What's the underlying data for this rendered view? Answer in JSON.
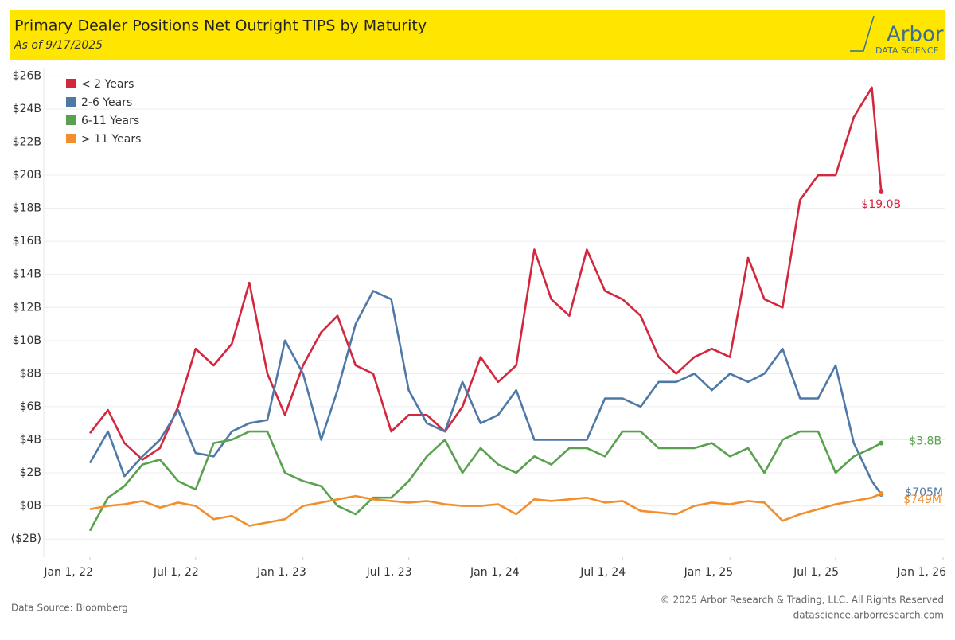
{
  "header": {
    "title": "Primary Dealer Positions Net Outright TIPS by Maturity",
    "subtitle": "As of 9/17/2025",
    "logo_name": "Arbor",
    "logo_tagline": "DATA SCIENCE"
  },
  "footer": {
    "source": "Data Source: Bloomberg",
    "copyright": "© 2025 Arbor Research & Trading, LLC. All Rights Reserved",
    "website": "datascience.arborresearch.com"
  },
  "chart_data": {
    "type": "line",
    "grid": true,
    "legend": "top-left",
    "x": [
      "2022-01-01",
      "2022-02-01",
      "2022-03-01",
      "2022-04-01",
      "2022-05-01",
      "2022-06-01",
      "2022-07-01",
      "2022-08-01",
      "2022-09-01",
      "2022-10-01",
      "2022-11-01",
      "2022-12-01",
      "2023-01-01",
      "2023-02-01",
      "2023-03-01",
      "2023-04-01",
      "2023-05-01",
      "2023-06-01",
      "2023-07-01",
      "2023-08-01",
      "2023-09-01",
      "2023-10-01",
      "2023-11-01",
      "2023-12-01",
      "2024-01-01",
      "2024-02-01",
      "2024-03-01",
      "2024-04-01",
      "2024-05-01",
      "2024-06-01",
      "2024-07-01",
      "2024-08-01",
      "2024-09-01",
      "2024-10-01",
      "2024-11-01",
      "2024-12-01",
      "2025-01-01",
      "2025-02-01",
      "2025-03-01",
      "2025-04-01",
      "2025-05-01",
      "2025-06-01",
      "2025-07-01",
      "2025-08-01",
      "2025-09-01",
      "2025-09-17"
    ],
    "xlim": [
      "2021-10-14",
      "2026-01-05"
    ],
    "xticks": [
      {
        "value": "2022-01-01",
        "label": "Jan 1, 22"
      },
      {
        "value": "2022-07-01",
        "label": "Jul 1, 22"
      },
      {
        "value": "2023-01-01",
        "label": "Jan 1, 23"
      },
      {
        "value": "2023-07-01",
        "label": "Jul 1, 23"
      },
      {
        "value": "2024-01-01",
        "label": "Jan 1, 24"
      },
      {
        "value": "2024-07-01",
        "label": "Jul 1, 24"
      },
      {
        "value": "2025-01-01",
        "label": "Jan 1, 25"
      },
      {
        "value": "2025-07-01",
        "label": "Jul 1, 25"
      },
      {
        "value": "2026-01-01",
        "label": "Jan 1, 26"
      }
    ],
    "ylim": [
      -3.1,
      26.5
    ],
    "yticks": [
      {
        "value": -2,
        "label": "($2B)"
      },
      {
        "value": 0,
        "label": "$0B"
      },
      {
        "value": 2,
        "label": "$2B"
      },
      {
        "value": 4,
        "label": "$4B"
      },
      {
        "value": 6,
        "label": "$6B"
      },
      {
        "value": 8,
        "label": "$8B"
      },
      {
        "value": 10,
        "label": "$10B"
      },
      {
        "value": 12,
        "label": "$12B"
      },
      {
        "value": 14,
        "label": "$14B"
      },
      {
        "value": 16,
        "label": "$16B"
      },
      {
        "value": 18,
        "label": "$18B"
      },
      {
        "value": 20,
        "label": "$20B"
      },
      {
        "value": 22,
        "label": "$22B"
      },
      {
        "value": 24,
        "label": "$24B"
      },
      {
        "value": 26,
        "label": "$26B"
      }
    ],
    "series": [
      {
        "name": "< 2 Years",
        "color": "#d3273e",
        "values": [
          4.4,
          5.8,
          3.8,
          2.8,
          3.5,
          6.0,
          9.5,
          8.5,
          9.8,
          13.5,
          8.0,
          5.5,
          8.5,
          10.5,
          11.5,
          8.5,
          8.0,
          4.5,
          5.5,
          5.5,
          4.5,
          6.0,
          9.0,
          7.5,
          8.5,
          15.5,
          12.5,
          11.5,
          15.5,
          13.0,
          12.5,
          11.5,
          9.0,
          8.0,
          9.0,
          9.5,
          9.0,
          15.0,
          12.5,
          12.0,
          18.5,
          20.0,
          20.0,
          23.5,
          25.3,
          19.0
        ],
        "value_labels": [
          null,
          null,
          null,
          null,
          null,
          null,
          null,
          null,
          null,
          null,
          null,
          null,
          null,
          null,
          null,
          null,
          null,
          null,
          null,
          null,
          null,
          null,
          null,
          null,
          null,
          null,
          null,
          null,
          null,
          null,
          null,
          null,
          null,
          null,
          null,
          null,
          null,
          null,
          null,
          null,
          null,
          null,
          null,
          null,
          null,
          "$19.0B"
        ]
      },
      {
        "name": "2-6 Years",
        "color": "#4e79a7",
        "values": [
          2.6,
          4.5,
          1.8,
          3.0,
          4.0,
          5.8,
          3.2,
          3.0,
          4.5,
          5.0,
          5.2,
          10.0,
          8.0,
          4.0,
          7.0,
          11.0,
          13.0,
          12.5,
          7.0,
          5.0,
          4.5,
          7.5,
          5.0,
          5.5,
          7.0,
          4.0,
          4.0,
          4.0,
          4.0,
          6.5,
          6.5,
          6.0,
          7.5,
          7.5,
          8.0,
          7.0,
          8.0,
          7.5,
          8.0,
          9.5,
          6.5,
          6.5,
          8.5,
          3.8,
          1.5,
          0.705
        ],
        "value_labels": [
          null,
          null,
          null,
          null,
          null,
          null,
          null,
          null,
          null,
          null,
          null,
          null,
          null,
          null,
          null,
          null,
          null,
          null,
          null,
          null,
          null,
          null,
          null,
          null,
          null,
          null,
          null,
          null,
          null,
          null,
          null,
          null,
          null,
          null,
          null,
          null,
          null,
          null,
          null,
          null,
          null,
          null,
          null,
          null,
          null,
          "$705M"
        ]
      },
      {
        "name": "6-11 Years",
        "color": "#59a14f",
        "values": [
          -1.5,
          0.5,
          1.2,
          2.5,
          2.8,
          1.5,
          1.0,
          3.8,
          4.0,
          4.5,
          4.5,
          2.0,
          1.5,
          1.2,
          0.0,
          -0.5,
          0.5,
          0.5,
          1.5,
          3.0,
          4.0,
          2.0,
          3.5,
          2.5,
          2.0,
          3.0,
          2.5,
          3.5,
          3.5,
          3.0,
          4.5,
          4.5,
          3.5,
          3.5,
          3.5,
          3.8,
          3.0,
          3.5,
          2.0,
          4.0,
          4.5,
          4.5,
          2.0,
          3.0,
          3.5,
          3.8
        ],
        "value_labels": [
          null,
          null,
          null,
          null,
          null,
          null,
          null,
          null,
          null,
          null,
          null,
          null,
          null,
          null,
          null,
          null,
          null,
          null,
          null,
          null,
          null,
          null,
          null,
          null,
          null,
          null,
          null,
          null,
          null,
          null,
          null,
          null,
          null,
          null,
          null,
          null,
          null,
          null,
          null,
          null,
          null,
          null,
          null,
          null,
          null,
          "$3.8B"
        ]
      },
      {
        "name": "> 11 Years",
        "color": "#f28e2b",
        "values": [
          -0.2,
          0.0,
          0.1,
          0.3,
          -0.1,
          0.2,
          0.0,
          -0.8,
          -0.6,
          -1.2,
          -1.0,
          -0.8,
          0.0,
          0.2,
          0.4,
          0.6,
          0.4,
          0.3,
          0.2,
          0.3,
          0.1,
          0.0,
          0.0,
          0.1,
          -0.5,
          0.4,
          0.3,
          0.4,
          0.5,
          0.2,
          0.3,
          -0.3,
          -0.4,
          -0.5,
          0.0,
          0.2,
          0.1,
          0.3,
          0.2,
          -0.9,
          -0.5,
          -0.2,
          0.1,
          0.3,
          0.5,
          0.749
        ],
        "value_labels": [
          null,
          null,
          null,
          null,
          null,
          null,
          null,
          null,
          null,
          null,
          null,
          null,
          null,
          null,
          null,
          null,
          null,
          null,
          null,
          null,
          null,
          null,
          null,
          null,
          null,
          null,
          null,
          null,
          null,
          null,
          null,
          null,
          null,
          null,
          null,
          null,
          null,
          null,
          null,
          null,
          null,
          null,
          null,
          null,
          null,
          "$749M"
        ]
      }
    ]
  }
}
